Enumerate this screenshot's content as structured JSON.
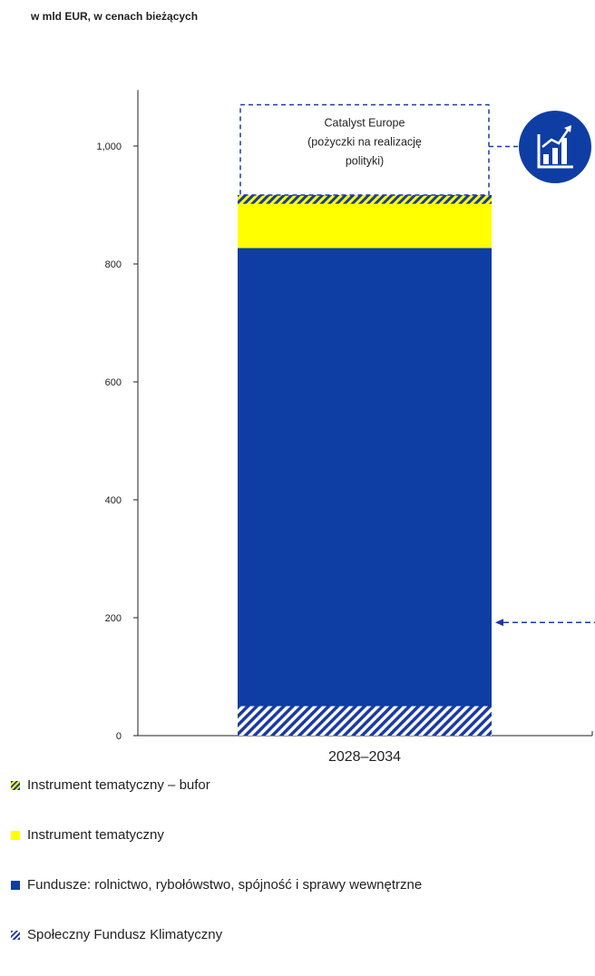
{
  "chart_data": {
    "type": "bar",
    "stacked": true,
    "unit_label": "w mld EUR, w cenach bieżących",
    "categories": [
      "2028–2034"
    ],
    "y_ticks": [
      0,
      200,
      400,
      600,
      800,
      1000
    ],
    "y_tick_labels": [
      "0",
      "200",
      "400",
      "600",
      "800",
      "1,000"
    ],
    "ylim": [
      0,
      1095
    ],
    "series": [
      {
        "name": "Społeczny Fundusz Klimatyczny",
        "values": [
          50
        ],
        "color": "#1a3aa6",
        "pattern": "hatch-blue"
      },
      {
        "name": "Fundusze: rolnictwo, rybołówstwo, spójność i sprawy wewnętrzne",
        "values": [
          777
        ],
        "color": "#0e3da3",
        "pattern": "solid"
      },
      {
        "name": "Instrument tematyczny",
        "values": [
          75
        ],
        "color": "#ffff00",
        "pattern": "solid"
      },
      {
        "name": "Instrument tematyczny – bufor",
        "values": [
          15
        ],
        "color": "#ffff00",
        "pattern": "hatch-yellow-blue"
      }
    ],
    "annotation": {
      "text": "Catalyst Europe\n(pożyczki na realizację\npolityki)",
      "range": [
        917,
        1070
      ],
      "style": "dashed-box",
      "icon": "growth-chart-icon"
    },
    "arrow_at": 192,
    "legend_order": [
      "Instrument tematyczny – bufor",
      "Instrument tematyczny",
      "Fundusze: rolnictwo, rybołówstwo, spójność i sprawy wewnętrzne",
      "Społeczny Fundusz Klimatyczny"
    ],
    "legend_position": "bottom"
  }
}
